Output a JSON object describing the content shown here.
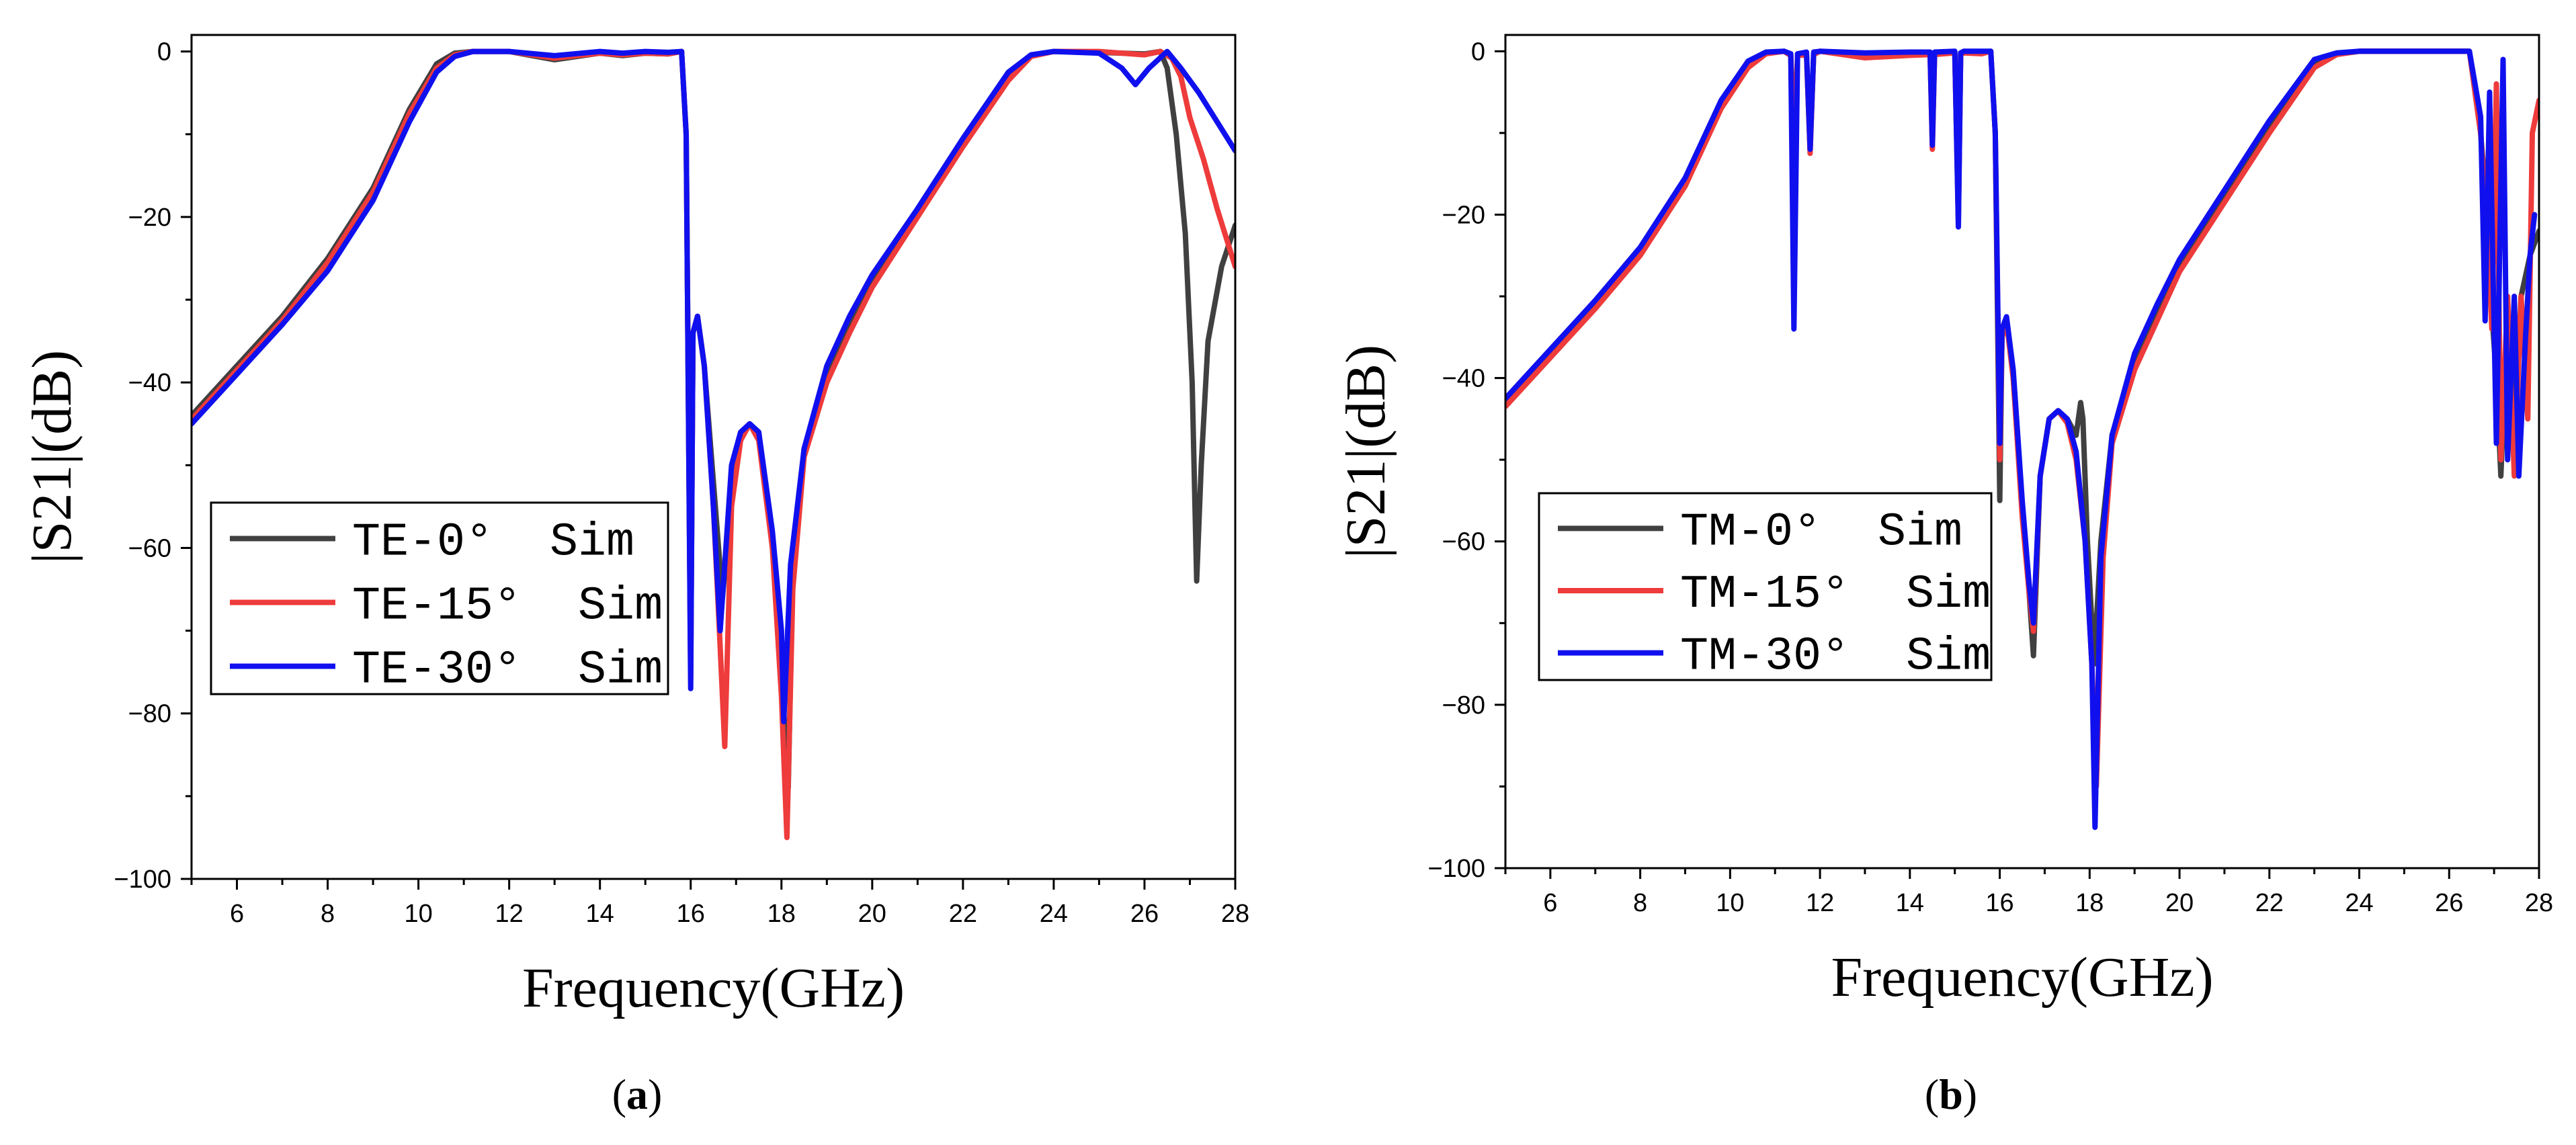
{
  "figure_captions": [
    "(a)",
    "(b)"
  ],
  "chart_data": [
    {
      "type": "line",
      "panel_label": "a",
      "xlabel": "Frequency(GHz)",
      "ylabel": "|S21|(dB)",
      "xlim": [
        5,
        28
      ],
      "ylim": [
        -100,
        2
      ],
      "xticks": [
        6,
        8,
        10,
        12,
        14,
        16,
        18,
        20,
        22,
        24,
        26,
        28
      ],
      "yticks": [
        0,
        -20,
        -40,
        -60,
        -80,
        -100
      ],
      "legend_position": "center-left",
      "series": [
        {
          "name": "TE-0°  Sim",
          "color": "#404040",
          "x": [
            5,
            6,
            7,
            8,
            9,
            9.8,
            10.4,
            10.8,
            11.2,
            12,
            13,
            14,
            14.5,
            15,
            15.5,
            15.8,
            15.9,
            16.0,
            16.05,
            16.15,
            16.3,
            16.5,
            16.7,
            16.8,
            16.95,
            17.15,
            17.3,
            17.5,
            17.8,
            18.0,
            18.15,
            18.25,
            18.5,
            19,
            19.5,
            20,
            21,
            22,
            23,
            23.5,
            24,
            25,
            26,
            26.35,
            26.5,
            26.7,
            26.9,
            27.05,
            27.15,
            27.25,
            27.4,
            27.7,
            28
          ],
          "y": [
            -44,
            -38,
            -32,
            -25,
            -16.5,
            -7,
            -1.5,
            -0.2,
            0,
            0,
            -1,
            -0.2,
            -0.5,
            -0.2,
            -0.3,
            0,
            -10,
            -75,
            -34,
            -32,
            -38,
            -52,
            -66,
            -60,
            -50,
            -46,
            -45,
            -46,
            -60,
            -75,
            -89,
            -62,
            -48,
            -39,
            -33,
            -28,
            -19.5,
            -11,
            -3,
            -0.5,
            0,
            -0.1,
            -0.3,
            0,
            -2,
            -10,
            -22,
            -40,
            -64,
            -50,
            -35,
            -26,
            -21
          ]
        },
        {
          "name": "TE-15°  Sim",
          "color": "#ee3b3b",
          "x": [
            5,
            6,
            7,
            8,
            9,
            9.8,
            10.4,
            10.8,
            11.2,
            12,
            13,
            14,
            14.5,
            15,
            15.5,
            15.8,
            15.9,
            16.0,
            16.05,
            16.15,
            16.3,
            16.5,
            16.65,
            16.75,
            16.9,
            17.1,
            17.3,
            17.5,
            17.8,
            18.0,
            18.12,
            18.25,
            18.5,
            19,
            19.5,
            20,
            21,
            22,
            23,
            23.5,
            24,
            25,
            26,
            26.35,
            26.6,
            26.8,
            27,
            27.3,
            27.6,
            28
          ],
          "y": [
            -44.5,
            -38.5,
            -32.5,
            -25.5,
            -17,
            -7.5,
            -2,
            -0.4,
            0,
            0,
            -0.8,
            -0.2,
            -0.4,
            -0.2,
            -0.3,
            0,
            -10,
            -76,
            -34,
            -32,
            -38,
            -55,
            -72,
            -84,
            -55,
            -47,
            -45,
            -47,
            -60,
            -78,
            -95,
            -65,
            -49,
            -40,
            -34,
            -28.5,
            -20,
            -11.5,
            -3.5,
            -0.6,
            0,
            0,
            -0.4,
            0,
            -0.8,
            -3,
            -8,
            -13,
            -19,
            -26
          ]
        },
        {
          "name": "TE-30°  Sim",
          "color": "#1010ee",
          "x": [
            5,
            6,
            7,
            8,
            9,
            9.8,
            10.4,
            10.8,
            11.2,
            12,
            13,
            14,
            14.5,
            15,
            15.5,
            15.8,
            15.9,
            16.0,
            16.05,
            16.15,
            16.3,
            16.5,
            16.65,
            16.75,
            16.9,
            17.1,
            17.3,
            17.5,
            17.8,
            18.0,
            18.05,
            18.2,
            18.5,
            19,
            19.5,
            20,
            21,
            22,
            23,
            23.5,
            24,
            25,
            25.5,
            25.8,
            26.1,
            26.5,
            26.8,
            27.2,
            27.6,
            28
          ],
          "y": [
            -45,
            -39,
            -33,
            -26.5,
            -18,
            -8.5,
            -2.5,
            -0.6,
            0,
            0,
            -0.5,
            0,
            -0.2,
            0,
            -0.1,
            0,
            -10,
            -77,
            -34,
            -32,
            -38,
            -55,
            -70,
            -62,
            -50,
            -46,
            -45,
            -46,
            -58,
            -70,
            -81,
            -62,
            -48,
            -38,
            -32,
            -27,
            -19,
            -10.5,
            -2.5,
            -0.4,
            0,
            -0.2,
            -2,
            -4,
            -2,
            0,
            -2,
            -5,
            -8.5,
            -12
          ]
        }
      ]
    },
    {
      "type": "line",
      "panel_label": "b",
      "xlabel": "Frequency(GHz)",
      "ylabel": "|S21|(dB)",
      "xlim": [
        5,
        28
      ],
      "ylim": [
        -100,
        2
      ],
      "xticks": [
        6,
        8,
        10,
        12,
        14,
        16,
        18,
        20,
        22,
        24,
        26,
        28
      ],
      "yticks": [
        0,
        -20,
        -40,
        -60,
        -80,
        -100
      ],
      "legend_position": "center-left",
      "series": [
        {
          "name": "TM-0°  Sim",
          "color": "#404040",
          "x": [
            5,
            6,
            7,
            8,
            9,
            9.8,
            10.4,
            10.8,
            11.2,
            11.35,
            11.42,
            11.5,
            11.7,
            11.78,
            11.86,
            12,
            13,
            14,
            14.45,
            14.5,
            14.55,
            15,
            15.08,
            15.13,
            15.2,
            15.6,
            15.8,
            15.9,
            16.0,
            16.05,
            16.15,
            16.3,
            16.5,
            16.65,
            16.75,
            16.9,
            17.1,
            17.3,
            17.5,
            17.7,
            17.8,
            17.85,
            17.95,
            18.1,
            18.25,
            18.5,
            19,
            19.5,
            20,
            21,
            22,
            23,
            23.5,
            24,
            25,
            26,
            26.45,
            26.7,
            26.85,
            26.95,
            27.05,
            27.15,
            27.3,
            27.45,
            27.6,
            27.8,
            28
          ],
          "y": [
            -43,
            -37,
            -31,
            -24.5,
            -16,
            -6.5,
            -1.5,
            -0.2,
            0,
            -0.5,
            -12,
            -0.5,
            -0.3,
            -12,
            -0.3,
            0,
            -0.5,
            -0.3,
            -0.2,
            -11,
            -0.2,
            -0.1,
            -20,
            -0.3,
            -0.1,
            -0.2,
            0,
            -10,
            -55,
            -35,
            -33,
            -40,
            -56,
            -66,
            -74,
            -52,
            -45,
            -44,
            -45,
            -47,
            -43,
            -45,
            -60,
            -75,
            -60,
            -47,
            -38,
            -32,
            -26,
            -17.5,
            -9,
            -1.5,
            -0.3,
            0,
            0,
            0,
            0,
            -10,
            -20,
            -32,
            -40,
            -52,
            -32,
            -48,
            -30,
            -25,
            -22
          ]
        },
        {
          "name": "TM-15°  Sim",
          "color": "#ee3b3b",
          "x": [
            5,
            6,
            7,
            8,
            9,
            9.8,
            10.4,
            10.8,
            11.2,
            11.35,
            11.42,
            11.5,
            11.7,
            11.78,
            11.86,
            12,
            13,
            14,
            14.45,
            14.5,
            14.55,
            15,
            15.08,
            15.13,
            15.2,
            15.6,
            15.8,
            15.9,
            16.0,
            16.05,
            16.15,
            16.3,
            16.5,
            16.65,
            16.75,
            16.9,
            17.1,
            17.3,
            17.5,
            17.7,
            17.9,
            18.05,
            18.15,
            18.3,
            18.5,
            19,
            19.5,
            20,
            21,
            22,
            23,
            23.5,
            24,
            25,
            26,
            26.45,
            26.7,
            26.85,
            26.95,
            27.05,
            27.15,
            27.3,
            27.45,
            27.6,
            27.75,
            27.85,
            28
          ],
          "y": [
            -43.5,
            -37.5,
            -31.5,
            -25,
            -16.5,
            -7,
            -2,
            -0.3,
            0,
            -0.5,
            -12.5,
            -0.5,
            -0.4,
            -12.5,
            -0.4,
            0,
            -0.8,
            -0.5,
            -0.4,
            -12,
            -0.4,
            -0.2,
            -21,
            -0.4,
            -0.2,
            -0.3,
            0,
            -10,
            -50,
            -35,
            -33,
            -40,
            -57,
            -66,
            -71,
            -52,
            -45,
            -44,
            -45.5,
            -50,
            -60,
            -75,
            -90,
            -62,
            -48,
            -39,
            -33,
            -27,
            -18.5,
            -10,
            -2,
            -0.4,
            0,
            0,
            0,
            0,
            -10,
            -22,
            -34,
            -4,
            -50,
            -30,
            -52,
            -30,
            -45,
            -10,
            -6
          ]
        },
        {
          "name": "TM-30°  Sim",
          "color": "#1010ee",
          "x": [
            5,
            6,
            7,
            8,
            9,
            9.8,
            10.4,
            10.8,
            11.2,
            11.35,
            11.42,
            11.5,
            11.7,
            11.78,
            11.86,
            12,
            13,
            14,
            14.45,
            14.5,
            14.55,
            15,
            15.08,
            15.13,
            15.2,
            15.6,
            15.8,
            15.9,
            16.0,
            16.05,
            16.15,
            16.3,
            16.5,
            16.65,
            16.75,
            16.9,
            17.1,
            17.3,
            17.5,
            17.7,
            17.9,
            18.05,
            18.12,
            18.25,
            18.5,
            19,
            19.5,
            20,
            21,
            22,
            23,
            23.5,
            24,
            25,
            26,
            26.45,
            26.7,
            26.8,
            26.9,
            27.05,
            27.2,
            27.3,
            27.45,
            27.55,
            27.7,
            27.8,
            27.9
          ],
          "y": [
            -42.5,
            -36.5,
            -30.5,
            -24,
            -15.5,
            -6,
            -1.2,
            -0.1,
            0,
            -0.3,
            -34,
            -0.3,
            -0.1,
            -12,
            -0.1,
            0,
            -0.2,
            -0.1,
            -0.1,
            -11.5,
            -0.1,
            0,
            -21.5,
            -0.2,
            0,
            0,
            0,
            -10,
            -48,
            -34,
            -32.5,
            -39,
            -55,
            -65,
            -70,
            -52,
            -45,
            -44,
            -45,
            -49,
            -60,
            -75,
            -95,
            -62,
            -47,
            -37,
            -31,
            -25.5,
            -17,
            -8.5,
            -1,
            -0.2,
            0,
            0,
            0,
            0,
            -8,
            -33,
            -5,
            -48,
            -1,
            -50,
            -30,
            -52,
            -35,
            -25,
            -20
          ]
        }
      ]
    }
  ]
}
